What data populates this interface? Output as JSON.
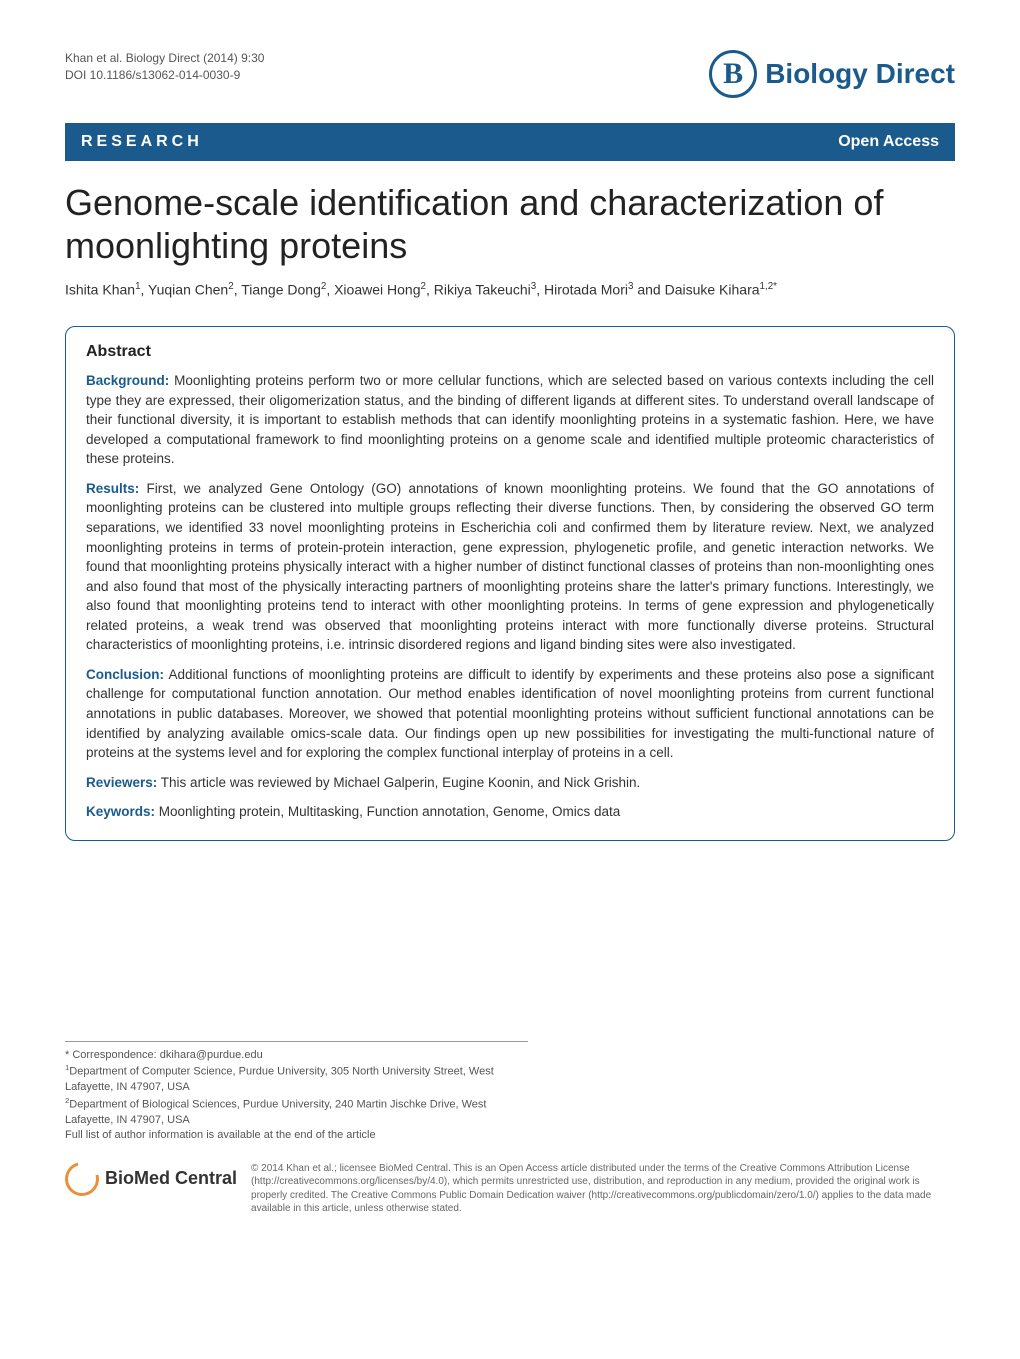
{
  "header": {
    "citation_line1": "Khan et al. Biology Direct  (2014) 9:30",
    "citation_line2": "DOI 10.1186/s13062-014-0030-9",
    "logo_letter": "B",
    "journal_name": "Biology Direct",
    "logo_color": "#1a5a8c"
  },
  "bar": {
    "left": "RESEARCH",
    "right": "Open Access",
    "bg_color": "#1a5a8c"
  },
  "title": "Genome-scale identification and characterization of moonlighting proteins",
  "authors_html": "Ishita Khan<sup>1</sup>, Yuqian Chen<sup>2</sup>, Tiange Dong<sup>2</sup>, Xioawei Hong<sup>2</sup>, Rikiya Takeuchi<sup>3</sup>, Hirotada Mori<sup>3</sup> and Daisuke Kihara<sup>1,2*</sup>",
  "abstract": {
    "heading": "Abstract",
    "sections": [
      {
        "label": "Background:",
        "text": " Moonlighting proteins perform two or more cellular functions, which are selected based on various contexts including the cell type they are expressed, their oligomerization status, and the binding of different ligands at different sites. To understand overall landscape of their functional diversity, it is important to establish methods that can identify moonlighting proteins in a systematic fashion. Here, we have developed a computational framework to find moonlighting proteins on a genome scale and identified multiple proteomic characteristics of these proteins."
      },
      {
        "label": "Results:",
        "text": " First, we analyzed Gene Ontology (GO) annotations of known moonlighting proteins. We found that the GO annotations of moonlighting proteins can be clustered into multiple groups reflecting their diverse functions. Then, by considering the observed GO term separations, we identified 33 novel moonlighting proteins in Escherichia coli and confirmed them by literature review. Next, we analyzed moonlighting proteins in terms of protein-protein interaction, gene expression, phylogenetic profile, and genetic interaction networks. We found that moonlighting proteins physically interact with a higher number of distinct functional classes of proteins than non-moonlighting ones and also found that most of the physically interacting partners of moonlighting proteins share the latter's primary functions. Interestingly, we also found that moonlighting proteins tend to interact with other moonlighting proteins. In terms of gene expression and phylogenetically related proteins, a weak trend was observed that moonlighting proteins interact with more functionally diverse proteins. Structural characteristics of moonlighting proteins, i.e. intrinsic disordered regions and ligand binding sites were also investigated."
      },
      {
        "label": "Conclusion:",
        "text": " Additional functions of moonlighting proteins are difficult to identify by experiments and these proteins also pose a significant challenge for computational function annotation. Our method enables identification of novel moonlighting proteins from current functional annotations in public databases. Moreover, we showed that potential moonlighting proteins without sufficient functional annotations can be identified by analyzing available omics-scale data. Our findings open up new possibilities for investigating the multi-functional nature of proteins at the systems level and for exploring the complex functional interplay of proteins in a cell."
      },
      {
        "label": "Reviewers:",
        "text": " This article was reviewed by Michael Galperin, Eugine Koonin, and Nick Grishin."
      },
      {
        "label": "Keywords:",
        "text": " Moonlighting protein, Multitasking, Function annotation, Genome, Omics data"
      }
    ]
  },
  "footnotes": {
    "correspondence": "* Correspondence: dkihara@purdue.edu",
    "affil1": "Department of Computer Science, Purdue University, 305 North University Street, West Lafayette, IN 47907, USA",
    "affil2": "Department of Biological Sciences, Purdue University, 240 Martin Jischke Drive, West Lafayette, IN 47907, USA",
    "fulllist": "Full list of author information is available at the end of the article"
  },
  "footer": {
    "bmc_label": "BioMed Central",
    "bmc_color": "#e8913a",
    "copyright": "© 2014 Khan et al.; licensee BioMed Central. This is an Open Access article distributed under the terms of the Creative Commons Attribution License (http://creativecommons.org/licenses/by/4.0), which permits unrestricted use, distribution, and reproduction in any medium, provided the original work is properly credited. The Creative Commons Public Domain Dedication waiver (http://creativecommons.org/publicdomain/zero/1.0/) applies to the data made available in this article, unless otherwise stated."
  }
}
